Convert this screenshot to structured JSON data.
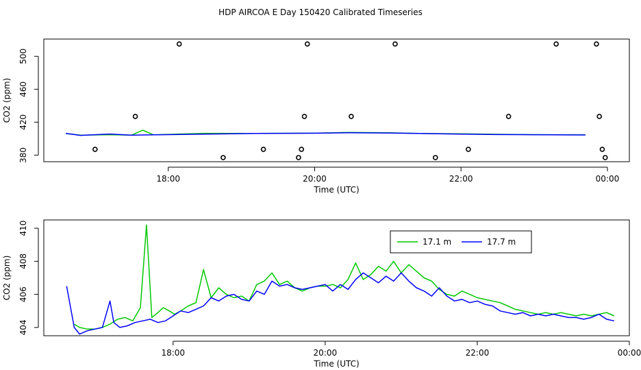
{
  "figure_title": "HDP AIRCOA E  Day 150420  Calibrated Timeseries",
  "chart_data": [
    {
      "type": "line",
      "xlabel": "Time (UTC)",
      "ylabel": "CO2 (ppm)",
      "xlim": [
        16.3,
        24.3
      ],
      "ylim": [
        372,
        521
      ],
      "x_ticks": [
        18,
        20,
        22,
        24
      ],
      "x_tick_labels": [
        "18:00",
        "20:00",
        "22:00",
        "00:00"
      ],
      "y_ticks": [
        380,
        420,
        460,
        500
      ],
      "y_tick_labels": [
        "380",
        "420",
        "460",
        "500"
      ],
      "grid": false,
      "series": [
        {
          "color": "#00c800",
          "x": [
            16.6,
            16.8,
            17.2,
            17.5,
            17.65,
            17.8,
            18.5,
            19.2,
            20.0,
            20.5,
            21.0,
            21.5,
            22.0,
            22.5,
            23.0,
            23.7
          ],
          "y": [
            406.2,
            404.2,
            404.8,
            404.3,
            410.3,
            404.6,
            406.5,
            406.4,
            406.6,
            407.6,
            407.1,
            406.2,
            406.0,
            405.3,
            404.9,
            404.7
          ]
        },
        {
          "color": "#0000ff",
          "x": [
            16.6,
            16.8,
            17.2,
            17.5,
            17.8,
            18.5,
            19.2,
            20.0,
            20.5,
            21.0,
            21.5,
            22.0,
            22.5,
            23.0,
            23.7
          ],
          "y": [
            406.5,
            404.0,
            405.6,
            404.3,
            404.6,
            405.5,
            406.3,
            406.6,
            407.2,
            406.9,
            406.2,
            405.5,
            405.0,
            404.8,
            404.5
          ]
        }
      ],
      "points": {
        "style": "open-circle",
        "x": [
          17.0,
          17.55,
          18.15,
          18.75,
          19.3,
          19.78,
          19.82,
          19.86,
          19.9,
          20.5,
          21.1,
          21.65,
          22.1,
          22.65,
          23.3,
          23.85,
          23.89,
          23.93,
          23.97
        ],
        "y": [
          387,
          427,
          515,
          377,
          387,
          377,
          387,
          427,
          515,
          427,
          515,
          377,
          387,
          427,
          515,
          515,
          427,
          387,
          377
        ]
      }
    },
    {
      "type": "line",
      "xlabel": "Time (UTC)",
      "ylabel": "CO2 (ppm)",
      "xlim": [
        16.3,
        24.0
      ],
      "ylim": [
        403.5,
        410.5
      ],
      "x_ticks": [
        18,
        20,
        22,
        24
      ],
      "x_tick_labels": [
        "18:00",
        "20:00",
        "22:00",
        "00:00"
      ],
      "y_ticks": [
        404,
        406,
        408,
        410
      ],
      "y_tick_labels": [
        "404",
        "406",
        "408",
        "410"
      ],
      "grid": false,
      "legend_placement": "top-right",
      "series": [
        {
          "name": "17.1 m",
          "color": "#00c800",
          "x": [
            16.7,
            16.77,
            16.87,
            16.97,
            17.07,
            17.17,
            17.27,
            17.37,
            17.47,
            17.57,
            17.65,
            17.72,
            17.8,
            17.87,
            17.95,
            18.02,
            18.1,
            18.2,
            18.3,
            18.4,
            18.5,
            18.6,
            18.7,
            18.8,
            18.9,
            19.0,
            19.1,
            19.2,
            19.3,
            19.4,
            19.5,
            19.6,
            19.7,
            19.8,
            19.9,
            20.0,
            20.1,
            20.2,
            20.3,
            20.4,
            20.5,
            20.6,
            20.7,
            20.8,
            20.9,
            21.0,
            21.1,
            21.2,
            21.3,
            21.4,
            21.5,
            21.6,
            21.7,
            21.8,
            21.9,
            22.0,
            22.1,
            22.2,
            22.3,
            22.4,
            22.5,
            22.6,
            22.7,
            22.8,
            22.9,
            23.0,
            23.1,
            23.2,
            23.3,
            23.4,
            23.5,
            23.6,
            23.7,
            23.8
          ],
          "y": [
            404.2,
            404.0,
            403.9,
            403.9,
            404.0,
            404.2,
            404.5,
            404.6,
            404.4,
            405.2,
            410.2,
            404.6,
            404.9,
            405.2,
            405.0,
            404.8,
            405.0,
            405.3,
            405.5,
            407.5,
            405.8,
            406.4,
            406.0,
            405.8,
            405.9,
            405.6,
            406.6,
            406.8,
            407.3,
            406.6,
            406.8,
            406.4,
            406.2,
            406.4,
            406.5,
            406.5,
            406.6,
            406.4,
            406.9,
            407.9,
            406.9,
            407.2,
            407.7,
            407.4,
            408.0,
            407.3,
            407.8,
            407.4,
            407.0,
            406.8,
            406.3,
            406.0,
            405.9,
            406.2,
            406.0,
            405.8,
            405.7,
            405.6,
            405.5,
            405.3,
            405.1,
            405.0,
            404.9,
            404.8,
            404.9,
            404.8,
            404.9,
            404.8,
            404.7,
            404.8,
            404.7,
            404.8,
            404.9,
            404.7
          ]
        },
        {
          "name": "17.7 m",
          "color": "#0000ff",
          "x": [
            16.6,
            16.7,
            16.77,
            16.87,
            16.97,
            17.07,
            17.17,
            17.22,
            17.3,
            17.4,
            17.5,
            17.6,
            17.7,
            17.8,
            17.9,
            18.0,
            18.1,
            18.2,
            18.3,
            18.4,
            18.5,
            18.6,
            18.7,
            18.8,
            18.9,
            19.0,
            19.1,
            19.2,
            19.3,
            19.4,
            19.5,
            19.6,
            19.7,
            19.8,
            19.9,
            20.0,
            20.1,
            20.2,
            20.3,
            20.4,
            20.5,
            20.6,
            20.7,
            20.8,
            20.9,
            21.0,
            21.1,
            21.2,
            21.3,
            21.4,
            21.5,
            21.6,
            21.7,
            21.8,
            21.9,
            22.0,
            22.1,
            22.2,
            22.3,
            22.4,
            22.5,
            22.6,
            22.7,
            22.8,
            22.9,
            23.0,
            23.1,
            23.2,
            23.3,
            23.4,
            23.5,
            23.6,
            23.7,
            23.8
          ],
          "y": [
            406.5,
            404.0,
            403.6,
            403.8,
            403.9,
            404.0,
            405.6,
            404.3,
            404.0,
            404.1,
            404.3,
            404.4,
            404.5,
            404.3,
            404.4,
            404.7,
            405.0,
            404.9,
            405.1,
            405.3,
            405.8,
            405.6,
            405.9,
            406.0,
            405.7,
            405.6,
            406.2,
            406.0,
            406.8,
            406.5,
            406.6,
            406.4,
            406.3,
            406.4,
            406.5,
            406.6,
            406.2,
            406.6,
            406.3,
            406.9,
            407.3,
            407.0,
            406.7,
            407.1,
            406.8,
            407.3,
            406.8,
            406.4,
            406.2,
            405.9,
            406.4,
            405.9,
            405.6,
            405.7,
            405.5,
            405.6,
            405.4,
            405.3,
            405.0,
            404.9,
            404.8,
            404.9,
            404.7,
            404.8,
            404.7,
            404.8,
            404.7,
            404.6,
            404.6,
            404.5,
            404.6,
            404.8,
            404.5,
            404.4
          ]
        }
      ]
    }
  ]
}
